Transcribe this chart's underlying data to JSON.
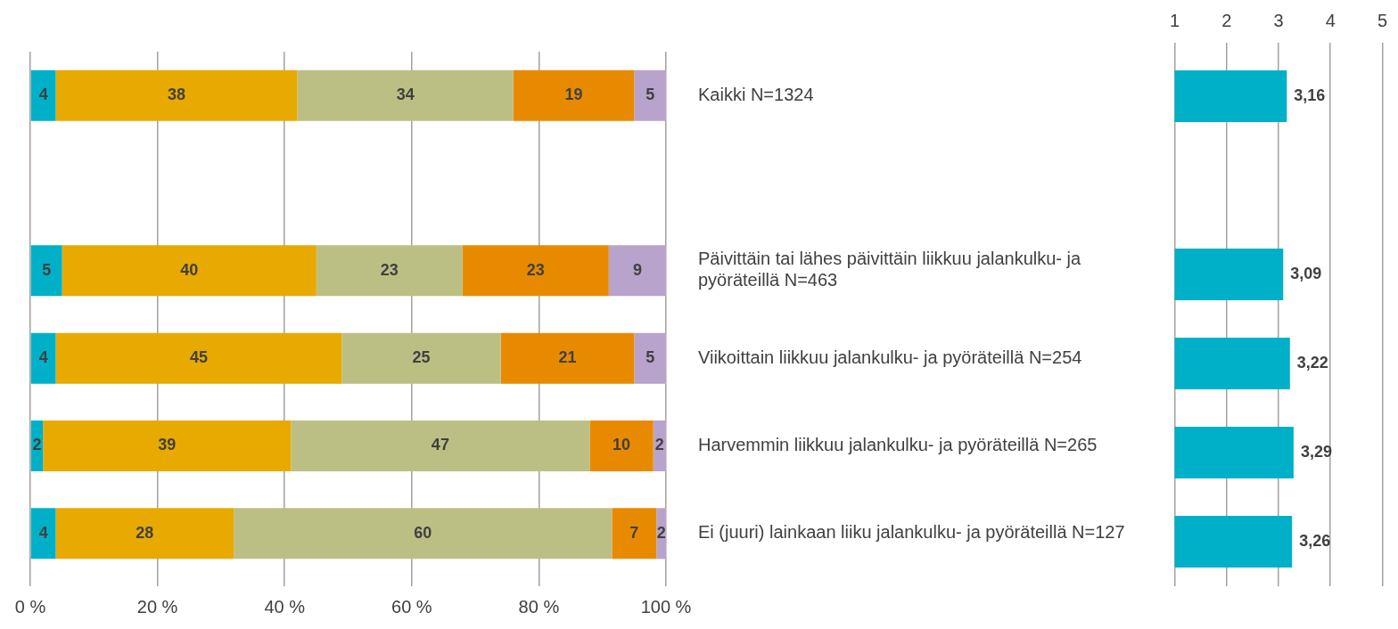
{
  "chart_data": [
    {
      "type": "bar",
      "orientation": "horizontal",
      "stacked": true,
      "categories": [
        "Kaikki N=1324",
        null,
        "Päivittäin tai lähes päivittäin liikkuu jalankulku- ja pyöräteillä N=463",
        "Viikoittain liikkuu jalankulku- ja pyöräteillä N=254",
        "Harvemmin liikkuu jalankulku- ja pyöräteillä N=265",
        "Ei (juuri) lainkaan liiku jalankulku- ja pyöräteillä N=127"
      ],
      "series": [
        {
          "color": "#00b0c8",
          "values": [
            4,
            null,
            5,
            4,
            2,
            4
          ],
          "value_labels": [
            "4",
            null,
            "5",
            "4",
            "2",
            "4"
          ]
        },
        {
          "color": "#e8a900",
          "values": [
            38,
            null,
            40,
            45,
            39,
            28
          ],
          "value_labels": [
            "38",
            null,
            "40",
            "45",
            "39",
            "28"
          ]
        },
        {
          "color": "#bcbf84",
          "values": [
            34,
            null,
            23,
            25,
            47,
            59.5
          ],
          "value_labels": [
            "34",
            null,
            "23",
            "25",
            "47",
            "60"
          ]
        },
        {
          "color": "#e88a00",
          "values": [
            19,
            null,
            23,
            21,
            10,
            7
          ],
          "value_labels": [
            "19",
            null,
            "23",
            "21",
            "10",
            "7"
          ]
        },
        {
          "color": "#b8a3cc",
          "values": [
            5,
            null,
            9,
            5,
            2,
            1.5
          ],
          "value_labels": [
            "5",
            null,
            "9",
            "5",
            "2",
            "2"
          ]
        }
      ],
      "xlim": [
        0,
        100
      ],
      "xticks": [
        {
          "value": 0,
          "label": "0 %"
        },
        {
          "value": 20,
          "label": "20 %"
        },
        {
          "value": 40,
          "label": "40 %"
        },
        {
          "value": 60,
          "label": "60 %"
        },
        {
          "value": 80,
          "label": "80 %"
        },
        {
          "value": 100,
          "label": "100 %"
        }
      ],
      "grid": "x",
      "legend": false
    },
    {
      "type": "bar",
      "orientation": "horizontal",
      "categories": [
        null,
        null,
        null,
        null,
        null,
        null
      ],
      "series": [
        {
          "color": "#00b0c8",
          "values": [
            3.16,
            null,
            3.09,
            3.22,
            3.29,
            3.26
          ],
          "value_labels": [
            "3,16",
            null,
            "3,09",
            "3,22",
            "3,29",
            "3,26"
          ]
        }
      ],
      "x2lim": [
        1,
        5
      ],
      "x2ticks": [
        1,
        2,
        3,
        4,
        5
      ],
      "grid": "x",
      "legend": false
    }
  ]
}
